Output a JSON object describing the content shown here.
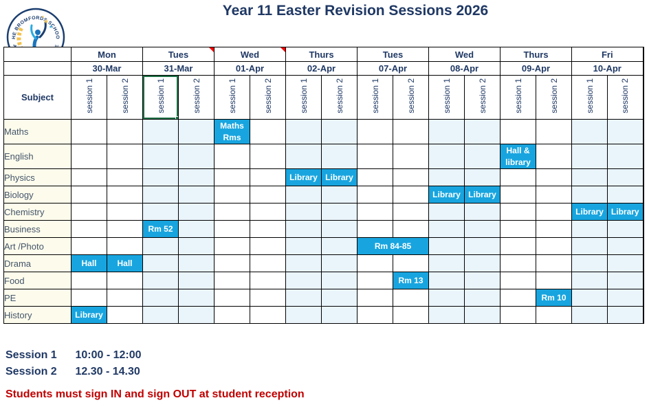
{
  "title": "Year 11 Easter Revision Sessions 2026",
  "logo": {
    "arc_top": "THE BROMFORDS SCHOOL",
    "arc_bottom": "ACHIEVE ENRICH PREPARE"
  },
  "timetable": {
    "subject_header": "Subject",
    "session_labels": [
      "session 1",
      "session 2"
    ],
    "selected_cell": {
      "day_index": 1,
      "session": 1
    },
    "days": [
      {
        "day": "Mon",
        "date": "30-Mar",
        "shaded": false,
        "comment_flag": false
      },
      {
        "day": "Tues",
        "date": "31-Mar",
        "shaded": true,
        "comment_flag": true
      },
      {
        "day": "Wed",
        "date": "01-Apr",
        "shaded": false,
        "comment_flag": true
      },
      {
        "day": "Thurs",
        "date": "02-Apr",
        "shaded": true,
        "comment_flag": false
      },
      {
        "day": "Tues",
        "date": "07-Apr",
        "shaded": false,
        "comment_flag": false
      },
      {
        "day": "Wed",
        "date": "08-Apr",
        "shaded": true,
        "comment_flag": false
      },
      {
        "day": "Thurs",
        "date": "09-Apr",
        "shaded": false,
        "comment_flag": false
      },
      {
        "day": "Fri",
        "date": "10-Apr",
        "shaded": true,
        "comment_flag": false
      }
    ],
    "rows": [
      {
        "subject": "Maths",
        "tall": true,
        "entries": [
          {
            "day": 2,
            "session": 1,
            "label": "Maths Rms"
          }
        ]
      },
      {
        "subject": "English",
        "tall": true,
        "entries": [
          {
            "day": 6,
            "session": 1,
            "label": "Hall & library"
          }
        ]
      },
      {
        "subject": "Physics",
        "entries": [
          {
            "day": 3,
            "session": 1,
            "label": "Library"
          },
          {
            "day": 3,
            "session": 2,
            "label": "Library"
          }
        ]
      },
      {
        "subject": "Biology",
        "entries": [
          {
            "day": 5,
            "session": 1,
            "label": "Library"
          },
          {
            "day": 5,
            "session": 2,
            "label": "Library"
          }
        ]
      },
      {
        "subject": "Chemistry",
        "entries": [
          {
            "day": 7,
            "session": 1,
            "label": "Library"
          },
          {
            "day": 7,
            "session": 2,
            "label": "Library"
          }
        ]
      },
      {
        "subject": "Business",
        "entries": [
          {
            "day": 1,
            "session": 1,
            "label": "Rm 52"
          }
        ]
      },
      {
        "subject": "Art /Photo",
        "entries": [
          {
            "day": 4,
            "session": 1,
            "label": "Rm 84-85",
            "colspan": 2
          }
        ]
      },
      {
        "subject": "Drama",
        "entries": [
          {
            "day": 0,
            "session": 1,
            "label": "Hall"
          },
          {
            "day": 0,
            "session": 2,
            "label": "Hall"
          }
        ]
      },
      {
        "subject": "Food",
        "entries": [
          {
            "day": 4,
            "session": 2,
            "label": "Rm 13"
          }
        ]
      },
      {
        "subject": "PE",
        "entries": [
          {
            "day": 6,
            "session": 2,
            "label": "Rm 10"
          }
        ]
      },
      {
        "subject": "History",
        "entries": [
          {
            "day": 0,
            "session": 1,
            "label": "Library"
          }
        ]
      }
    ]
  },
  "footer": {
    "sessions": [
      {
        "label": "Session 1",
        "time": "10:00 - 12:00"
      },
      {
        "label": "Session 2",
        "time": "12.30 - 14.30"
      }
    ],
    "notice": "Students must sign IN and sign OUT at student reception"
  },
  "colors": {
    "accent_cyan": "#18A5DF",
    "navy": "#1F3864",
    "column_shade": "#E9F4FB",
    "subject_ivory": "#FDFCEC",
    "notice_red": "#C00000",
    "selection_green": "#1E7145",
    "comment_flag_red": "#FF0000"
  }
}
